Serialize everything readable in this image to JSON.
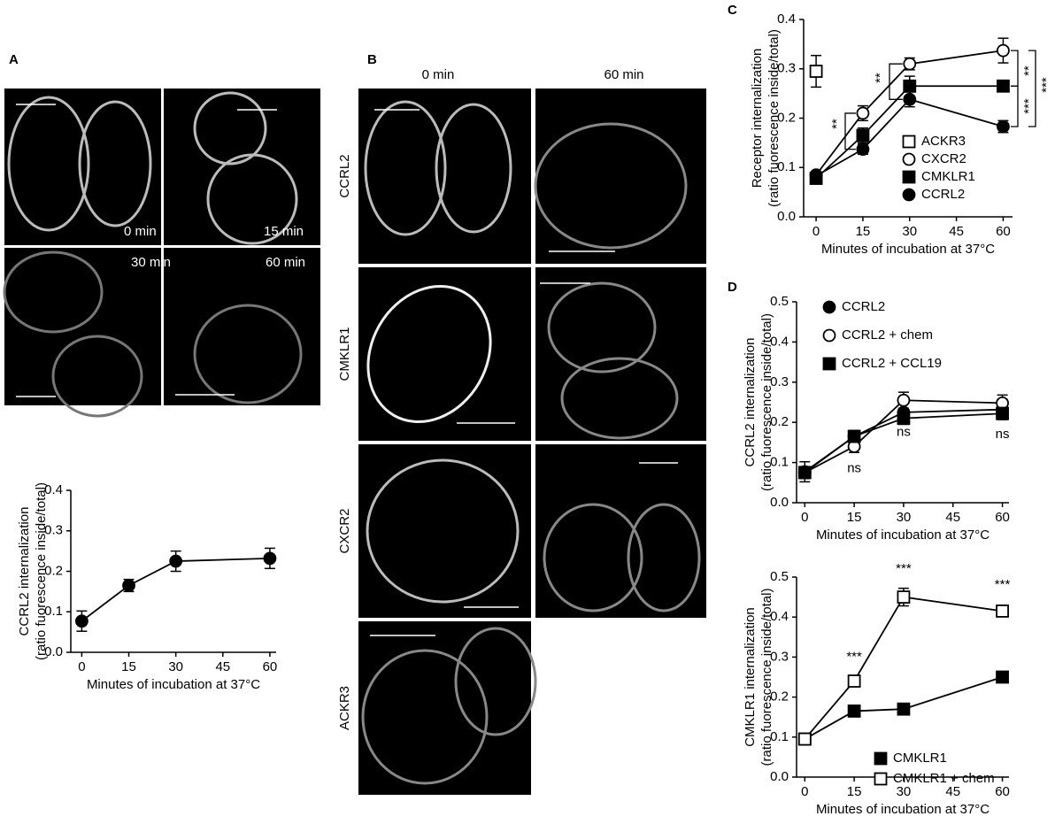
{
  "figure_labels": [
    "A",
    "B",
    "C",
    "D"
  ],
  "panel_a_images": {
    "labels": [
      "0 min",
      "15 min",
      "30 min",
      "60 min"
    ]
  },
  "panel_b_images": {
    "columns": [
      "0 min",
      "60 min"
    ],
    "rows": [
      "CCRL2",
      "CMKLR1",
      "CXCR2",
      "ACKR3"
    ]
  },
  "chart_data": [
    {
      "type": "line",
      "ylabel": [
        "CCRL2 internalization",
        "(ratio fuorescence inside/total)"
      ],
      "xlabel": "Minutes of incubation at 37°C",
      "xlim": [
        -3.5,
        62
      ],
      "xticks": [
        0,
        15,
        30,
        45,
        60
      ],
      "ylim": [
        0,
        0.4
      ],
      "yticks": [
        {
          "value": 0,
          "label": "0.0"
        },
        0.1,
        0.2,
        0.3,
        0.4
      ],
      "series": [
        {
          "name": null,
          "color": "#000000",
          "marker": "circle",
          "filled": true,
          "x": [
            0,
            15,
            30,
            60
          ],
          "values": [
            0.077,
            0.165,
            0.225,
            0.232
          ],
          "errors": [
            0.025,
            0.015,
            0.025,
            0.025
          ]
        }
      ]
    },
    {
      "type": "line",
      "ylabel": [
        "Receptor internalization",
        "(ratio fuorescence inside/total)"
      ],
      "xlabel": "Minutes of incubation at 37°C",
      "xlim": [
        -4,
        63
      ],
      "xticks": [
        0,
        15,
        30,
        45,
        60
      ],
      "ylim": [
        0,
        0.4
      ],
      "yticks": [
        {
          "value": 0,
          "label": "0.0"
        },
        0.1,
        0.2,
        0.3,
        0.4
      ],
      "series": [
        {
          "name": "ACKR3",
          "color": "#000000",
          "marker": "square",
          "filled": false,
          "x": [
            0
          ],
          "values": [
            0.295
          ],
          "errors": [
            0.032
          ]
        },
        {
          "name": "CXCR2",
          "color": "#000000",
          "marker": "circle",
          "filled": false,
          "x": [
            0,
            15,
            30,
            60
          ],
          "values": [
            0.085,
            0.21,
            0.31,
            0.337
          ],
          "errors": [
            0.006,
            0.015,
            0.012,
            0.025
          ]
        },
        {
          "name": "CMKLR1",
          "color": "#000000",
          "marker": "square",
          "filled": true,
          "x": [
            0,
            15,
            30,
            60
          ],
          "values": [
            0.078,
            0.165,
            0.265,
            0.265
          ],
          "errors": [
            0.005,
            0.015,
            0.02,
            0.008
          ]
        },
        {
          "name": "CCRL2",
          "color": "#000000",
          "marker": "circle",
          "filled": true,
          "x": [
            0,
            15,
            30,
            60
          ],
          "values": [
            0.083,
            0.137,
            0.238,
            0.183
          ],
          "errors": [
            0.005,
            0.01,
            0.015,
            0.012
          ]
        }
      ],
      "annotations": [
        "**",
        "**",
        "**",
        "***",
        "***"
      ]
    },
    {
      "type": "line",
      "ylabel": [
        "CCRL2 internalization",
        "(ratio fuorescence inside/total)"
      ],
      "xlabel": "Minutes of incubation at 37°C",
      "xlim": [
        -2.5,
        62
      ],
      "xticks": [
        0,
        15,
        30,
        45,
        60
      ],
      "ylim": [
        0,
        0.5
      ],
      "yticks": [
        {
          "value": 0,
          "label": "0.0"
        },
        0.1,
        0.2,
        0.3,
        0.4,
        0.5
      ],
      "series": [
        {
          "name": "CCRL2",
          "color": "#000000",
          "marker": "circle",
          "filled": true,
          "x": [
            0,
            15,
            30,
            60
          ],
          "values": [
            0.077,
            0.165,
            0.225,
            0.232
          ],
          "errors": [
            0.025,
            0.015,
            0.025,
            0.025
          ]
        },
        {
          "name": "CCRL2 + chem",
          "color": "#000000",
          "marker": "circle",
          "filled": false,
          "x": [
            0,
            15,
            30,
            60
          ],
          "values": [
            0.075,
            0.14,
            0.255,
            0.248
          ],
          "errors": [
            0.015,
            0.015,
            0.02,
            0.02
          ]
        },
        {
          "name": "CCRL2 + CCL19",
          "color": "#000000",
          "marker": "square",
          "filled": true,
          "x": [
            0,
            15,
            30,
            60
          ],
          "values": [
            0.075,
            0.165,
            0.21,
            0.222
          ],
          "errors": [
            0.01,
            0.01,
            0.015,
            0.015
          ]
        }
      ],
      "annotations": [
        "ns",
        "ns",
        "ns"
      ]
    },
    {
      "type": "line",
      "ylabel": [
        "CMKLR1 internalization",
        "(ratio fuorescence inside/total)"
      ],
      "xlabel": "Minutes of incubation at 37°C",
      "xlim": [
        -2.5,
        62
      ],
      "xticks": [
        0,
        15,
        30,
        45,
        60
      ],
      "ylim": [
        0,
        0.5
      ],
      "yticks": [
        {
          "value": 0,
          "label": "0.0"
        },
        0.1,
        0.2,
        0.3,
        0.4,
        0.5
      ],
      "series": [
        {
          "name": "CMKLR1",
          "color": "#000000",
          "marker": "square",
          "filled": true,
          "x": [
            0,
            15,
            30,
            60
          ],
          "values": [
            0.095,
            0.165,
            0.17,
            0.25
          ],
          "errors": [
            0.005,
            0.008,
            0.008,
            0.012
          ]
        },
        {
          "name": "CMKLR1 + chem",
          "color": "#000000",
          "marker": "square",
          "filled": false,
          "x": [
            0,
            15,
            30,
            60
          ],
          "values": [
            0.095,
            0.24,
            0.45,
            0.415
          ],
          "errors": [
            0.005,
            0.01,
            0.022,
            0.012
          ]
        }
      ],
      "annotations": [
        "***",
        "***",
        "***"
      ]
    }
  ]
}
